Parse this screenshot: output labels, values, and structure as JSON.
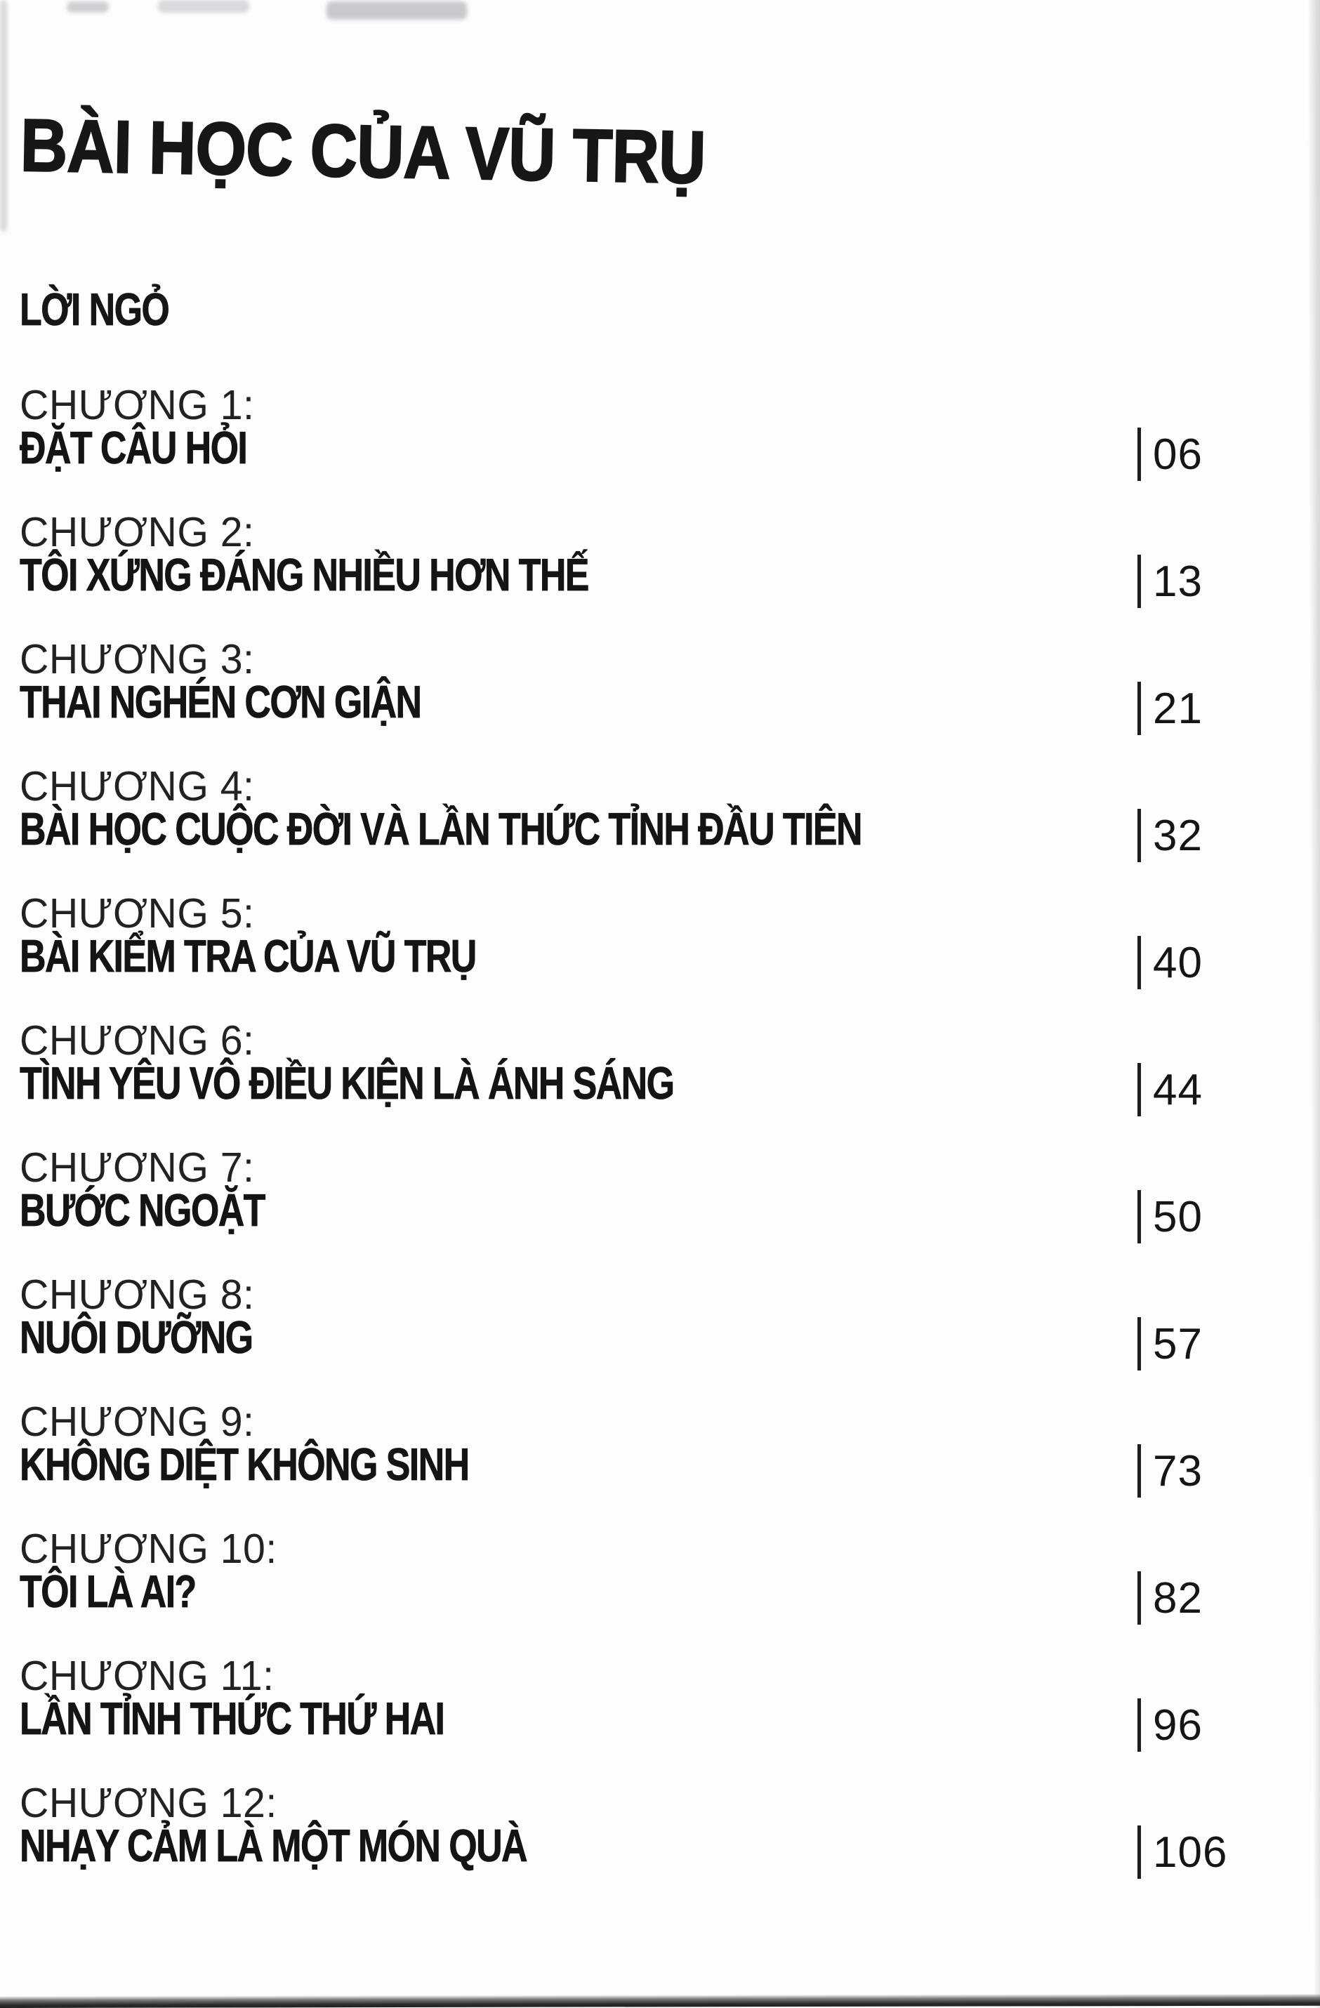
{
  "colors": {
    "text": "#1b1b1b",
    "background": "#fdfdfd",
    "page_edge_shadow": "#cfcfd1",
    "bottom_edge": "#2c2c2c"
  },
  "page": {
    "title": "BÀI HỌC CỦA VŨ TRỤ",
    "preface": "LỜI NGỎ",
    "separator": "|",
    "entries": [
      {
        "label": "CHƯƠNG 1:",
        "title": "ĐẶT CÂU HỎI",
        "page": "06"
      },
      {
        "label": "CHƯƠNG 2:",
        "title": "TÔI XỨNG ĐÁNG NHIỀU HƠN THẾ",
        "page": "13"
      },
      {
        "label": "CHƯƠNG 3:",
        "title": "THAI NGHÉN CƠN GIẬN",
        "page": "21"
      },
      {
        "label": "CHƯƠNG 4:",
        "title": "BÀI HỌC CUỘC ĐỜI VÀ LẦN THỨC TỈNH ĐẦU TIÊN",
        "page": "32"
      },
      {
        "label": "CHƯƠNG 5:",
        "title": "BÀI KIỂM TRA CỦA VŨ TRỤ",
        "page": "40"
      },
      {
        "label": "CHƯƠNG 6:",
        "title": "TÌNH YÊU VÔ ĐIỀU KIỆN LÀ ÁNH SÁNG",
        "page": "44"
      },
      {
        "label": "CHƯƠNG 7:",
        "title": "BƯỚC NGOẶT",
        "page": "50"
      },
      {
        "label": "CHƯƠNG 8:",
        "title": "NUÔI DƯỠNG",
        "page": "57"
      },
      {
        "label": "CHƯƠNG 9:",
        "title": "KHÔNG DIỆT KHÔNG SINH",
        "page": "73"
      },
      {
        "label": "CHƯƠNG 10:",
        "title": "TÔI LÀ AI?",
        "page": "82"
      },
      {
        "label": "CHƯƠNG 11:",
        "title": "LẦN TỈNH THỨC THỨ HAI",
        "page": "96"
      },
      {
        "label": "CHƯƠNG 12:",
        "title": "NHẠY CẢM LÀ MỘT MÓN QUÀ",
        "page": "106"
      }
    ]
  }
}
